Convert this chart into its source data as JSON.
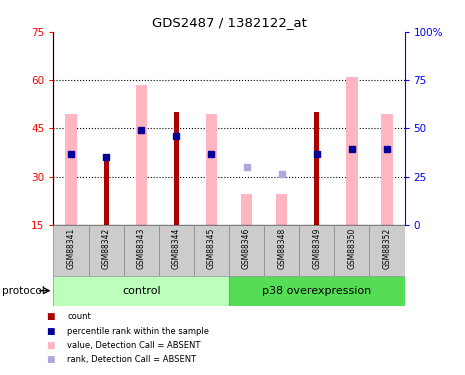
{
  "title": "GDS2487 / 1382122_at",
  "samples": [
    "GSM88341",
    "GSM88342",
    "GSM88343",
    "GSM88344",
    "GSM88345",
    "GSM88346",
    "GSM88348",
    "GSM88349",
    "GSM88350",
    "GSM88352"
  ],
  "value_absent": [
    49.5,
    null,
    58.5,
    null,
    49.5,
    24.5,
    24.5,
    null,
    61.0,
    49.5
  ],
  "rank_absent": [
    null,
    null,
    null,
    null,
    null,
    33.0,
    31.0,
    null,
    null,
    null
  ],
  "count_red": [
    null,
    35.0,
    null,
    50.0,
    null,
    null,
    null,
    50.0,
    null,
    null
  ],
  "percentile_blue": [
    37.0,
    36.0,
    44.5,
    42.5,
    37.0,
    null,
    null,
    37.0,
    38.5,
    38.5
  ],
  "ylim_left": [
    15,
    75
  ],
  "ylim_right": [
    0,
    100
  ],
  "yticks_left": [
    15,
    30,
    45,
    60,
    75
  ],
  "yticks_right": [
    0,
    25,
    50,
    75,
    100
  ],
  "ytick_labels_left": [
    "15",
    "30",
    "45",
    "60",
    "75"
  ],
  "ytick_labels_right": [
    "0",
    "25",
    "50",
    "75",
    "100%"
  ],
  "color_count": "#AA0000",
  "color_percentile": "#000099",
  "color_value_absent": "#FFB6C1",
  "color_rank_absent": "#AAAADD",
  "control_color": "#BBFFBB",
  "p38_color": "#55DD55",
  "group_label_control": "control",
  "group_label_p38": "p38 overexpression",
  "protocol_label": "protocol",
  "legend_items": [
    {
      "label": "count",
      "color": "#AA0000"
    },
    {
      "label": "percentile rank within the sample",
      "color": "#000099"
    },
    {
      "label": "value, Detection Call = ABSENT",
      "color": "#FFB6C1"
    },
    {
      "label": "rank, Detection Call = ABSENT",
      "color": "#AAAADD"
    }
  ]
}
